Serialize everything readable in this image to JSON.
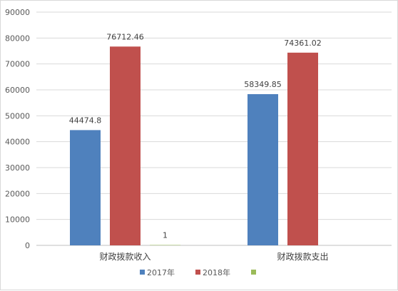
{
  "chart_data": {
    "type": "bar",
    "title": "",
    "xlabel": "",
    "ylabel": "",
    "ylim": [
      0,
      90000
    ],
    "yticks": [
      0,
      10000,
      20000,
      30000,
      40000,
      50000,
      60000,
      70000,
      80000,
      90000
    ],
    "grid": true,
    "legend_position": "bottom",
    "categories": [
      "财政拨款收入",
      "财政拨款支出"
    ],
    "series": [
      {
        "name": "2017年",
        "color": "#4f81bd",
        "values": [
          44474.8,
          58349.85
        ],
        "labels": [
          "44474.8",
          "58349.85"
        ]
      },
      {
        "name": "2018年",
        "color": "#c0504d",
        "values": [
          76712.46,
          74361.02
        ],
        "labels": [
          "76712.46",
          "74361.02"
        ]
      },
      {
        "name": "",
        "color": "#9bbb59",
        "values": [
          1,
          null
        ],
        "labels": [
          "1",
          ""
        ]
      }
    ]
  }
}
